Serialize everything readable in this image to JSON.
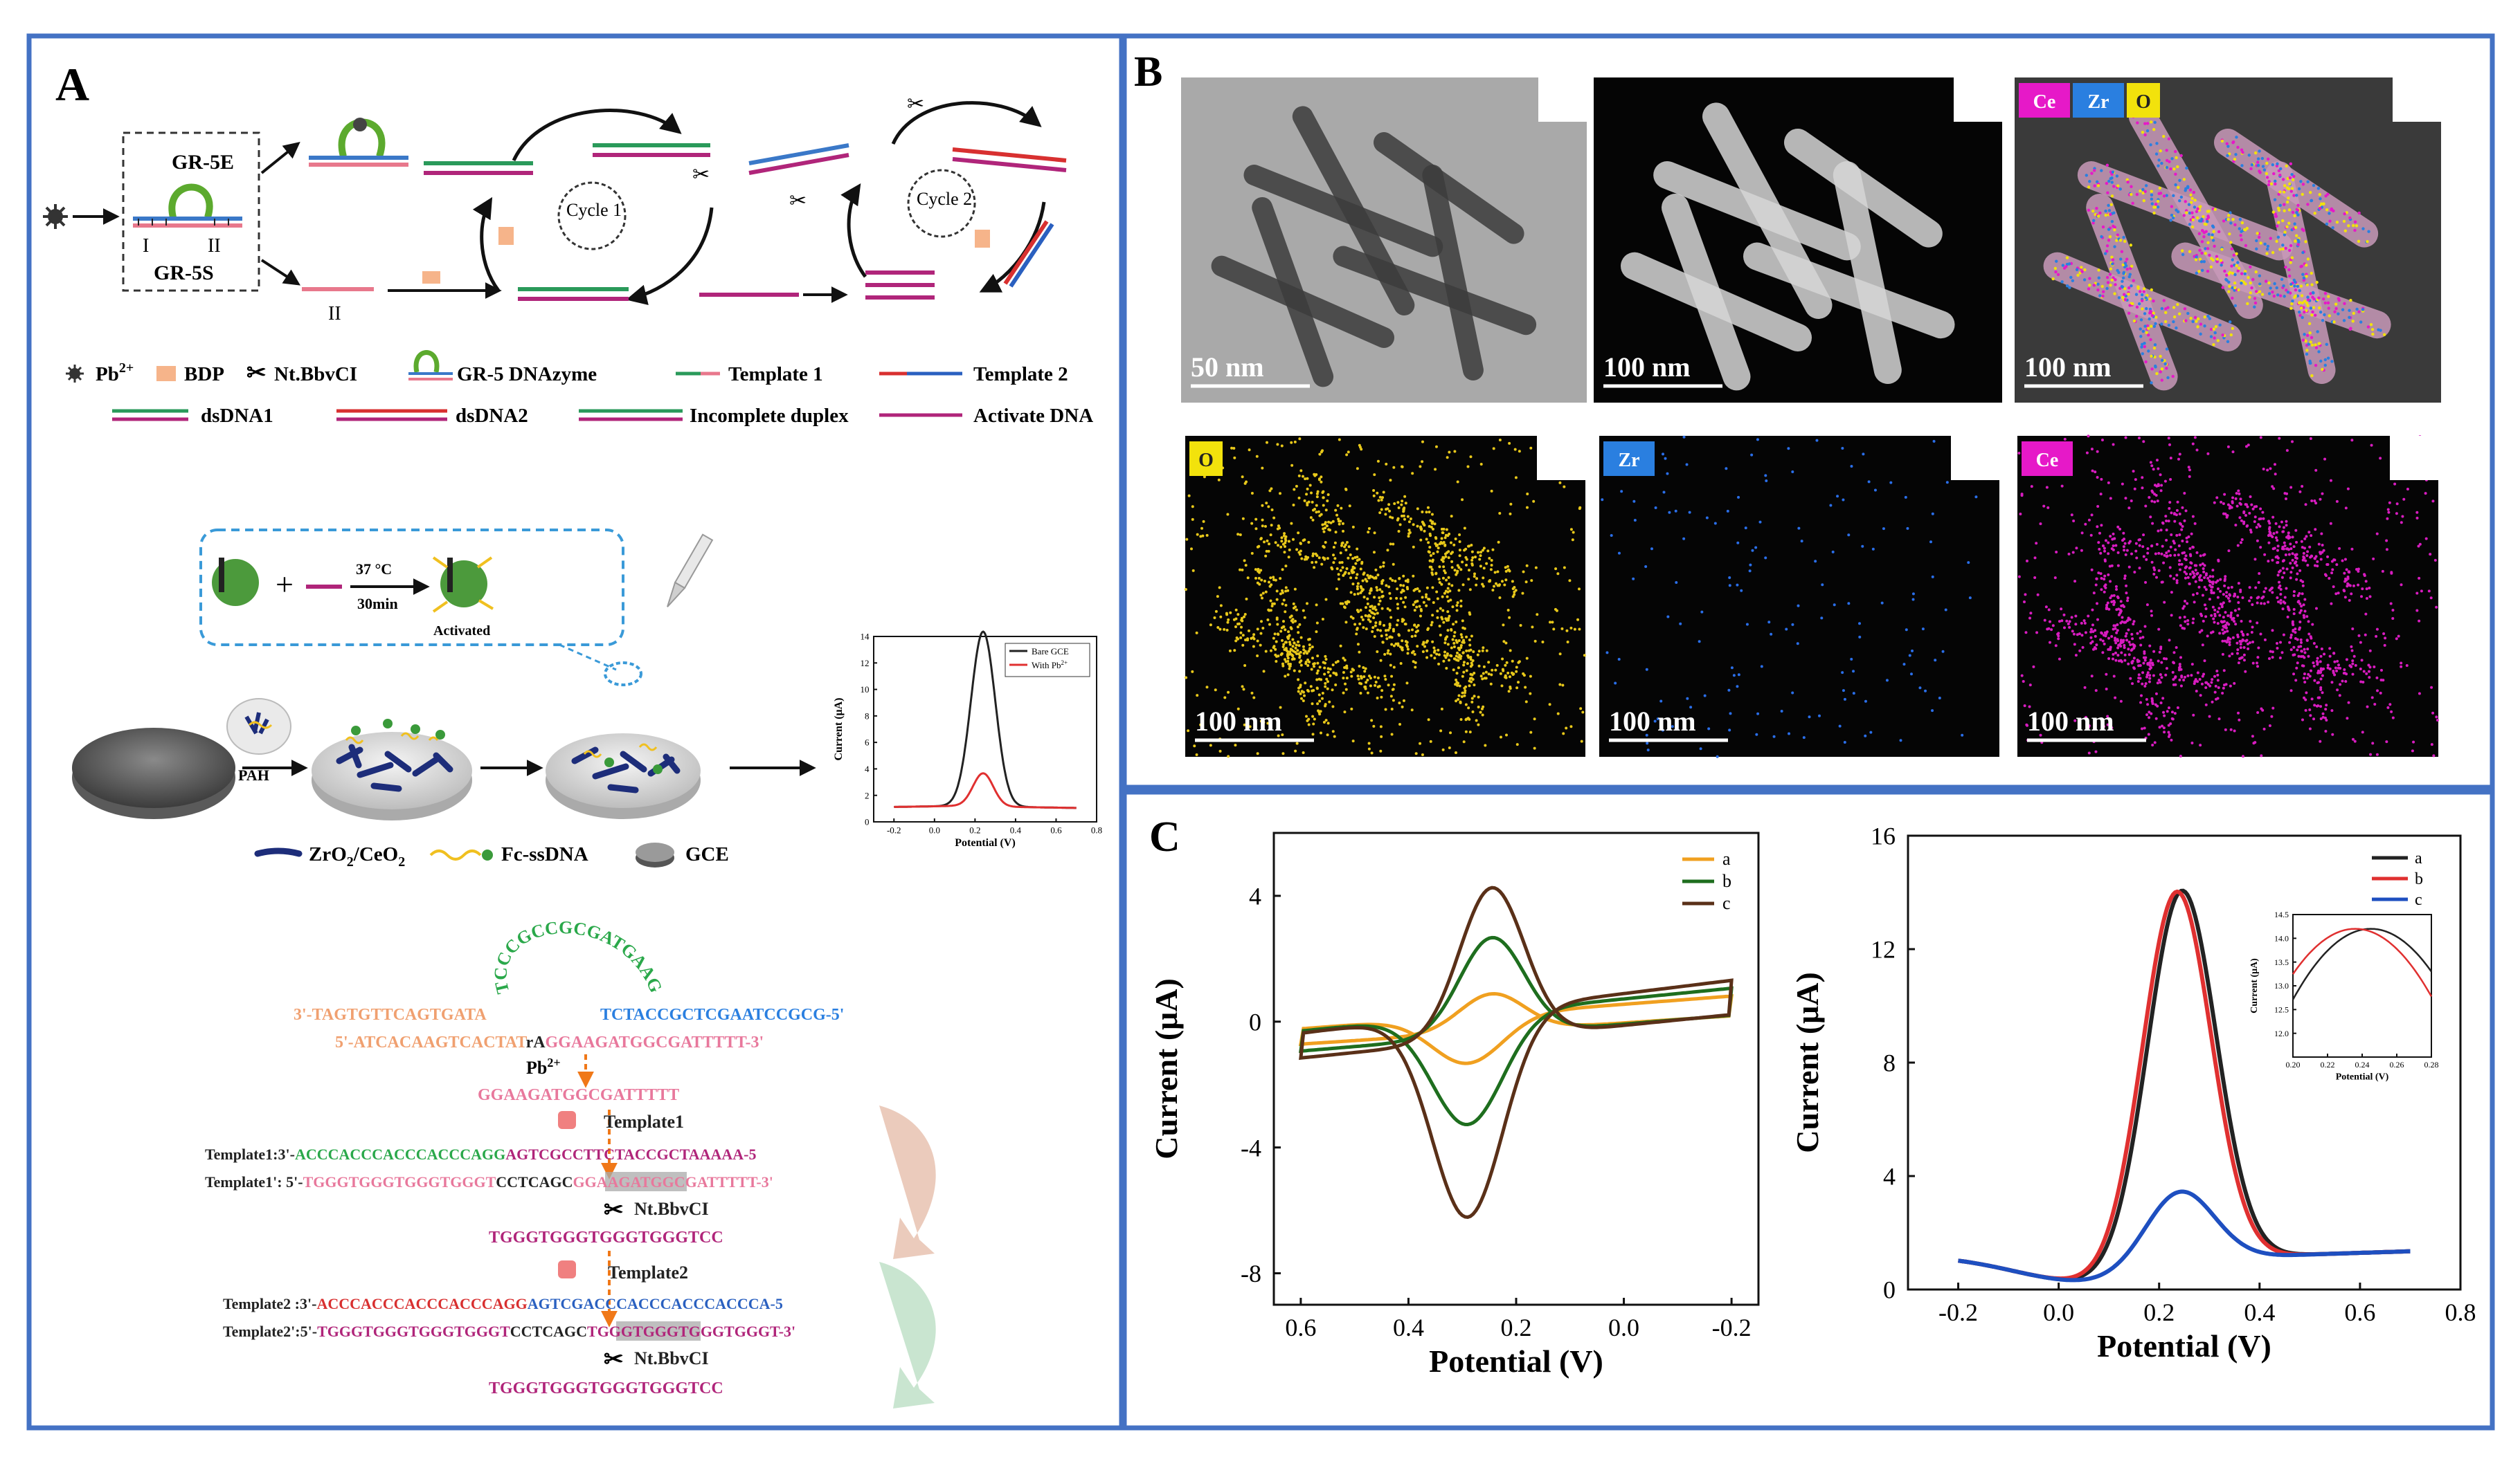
{
  "panelA": {
    "label": "A",
    "scheme": {
      "gr5e": "GR-5E",
      "gr5s": "GR-5S",
      "strand1": "I",
      "strand2": "II",
      "strand2b": "II",
      "cycle1": "Cycle 1",
      "cycle2": "Cycle 2"
    },
    "legend": [
      {
        "text": "Pb",
        "sup": "2+",
        "icon": "lead-ion-icon"
      },
      {
        "text": "BDP",
        "icon": "bdp-block-icon"
      },
      {
        "text": "Nt.BbvCI",
        "icon": "scissors-icon"
      },
      {
        "text": "GR-5 DNAzyme",
        "icon": "dnazyme-icon"
      },
      {
        "text": "Template 1",
        "icon": "template1-line"
      },
      {
        "text": "Template 2",
        "icon": "template2-line"
      },
      {
        "text": "dsDNA1",
        "icon": "dsdna1-icon"
      },
      {
        "text": "dsDNA2",
        "icon": "dsdna2-icon"
      },
      {
        "text": "Incomplete duplex",
        "icon": "incomplete-duplex-icon"
      },
      {
        "text": "Activate DNA",
        "icon": "activate-dna-line"
      }
    ],
    "assembly": {
      "temp": "37 °C",
      "time": "30min",
      "activated": "Activated",
      "pah": "PAH",
      "legend_zro2": "ZrO",
      "legend_zro2_sub": "2",
      "legend_ceo2": "/CeO",
      "legend_ceo2_sub": "2",
      "legend_fc": "Fc-ssDNA",
      "legend_gce": "GCE"
    },
    "sequences": {
      "loop": "TCCCGCCGCGATGAAG",
      "l1_left": "3'-TAGTGTTCAGTGATA",
      "l1_right": "TCTACCGCTCGAATCCGCG-5'",
      "l2_a": "5'-ATCACAAGTCACTAT",
      "l2_b": "rA",
      "l2_c": "GGAAGATGGCGATTTTT-3'",
      "pb": "Pb",
      "pb_sup": "2+",
      "cleaved": "GGAAGATGGCGATTTTT",
      "template1_label": "Template1",
      "t1_prefix": "Template1:3'-",
      "t1_seq_a": "ACCCACCCACCCACCCAGG",
      "t1_seq_b": "AGTCGCCTTCTACCGCTAAAAA-5",
      "t1p_prefix": "Template1':  5'-",
      "t1p_seq_a": "TGGGTGGGTGGGTGGGT",
      "t1p_seq_b": "CCTCAGC",
      "t1p_seq_c": "GGAAGATGGCGATTTTT-3'",
      "nick1": "Nt.BbvCI",
      "product1": "TGGGTGGGTGGGTGGGTCC",
      "template2_label": "Template2",
      "t2_prefix": "Template2 :3'-",
      "t2_seq_a": "ACCCACCCACCCACCCAGG",
      "t2_seq_b": "AGTCGACCCACCCACCCACCCA-5",
      "t2p_prefix": "Template2':5'-",
      "t2p_seq_a": "TGGGTGGGTGGGTGGGT",
      "t2p_seq_b": "CCTCAGC",
      "t2p_seq_c": "TGGGTGGGTGGGTGGGT-3'",
      "nick2": "Nt.BbvCI",
      "product2": "TGGGTGGGTGGGTGGGTCC"
    }
  },
  "panelB": {
    "label": "B",
    "tiles": [
      {
        "scale": "50 nm",
        "tags": []
      },
      {
        "scale": "100 nm",
        "tags": []
      },
      {
        "scale": "100 nm",
        "tags": [
          {
            "t": "Ce",
            "c": "#e619c8"
          },
          {
            "t": "Zr",
            "c": "#2a7fe0"
          },
          {
            "t": "O",
            "c": "#f2e20c"
          }
        ]
      },
      {
        "scale": "100 nm",
        "tags": [
          {
            "t": "O",
            "c": "#f2e20c"
          }
        ]
      },
      {
        "scale": "100 nm",
        "tags": [
          {
            "t": "Zr",
            "c": "#2a7fe0"
          }
        ]
      },
      {
        "scale": "100 nm",
        "tags": [
          {
            "t": "Ce",
            "c": "#e619c8"
          }
        ]
      }
    ]
  },
  "panelC": {
    "label": "C"
  },
  "chart_data": [
    {
      "type": "line",
      "name_hint": "inset schematic DPV",
      "xlabel": "Potential (V)",
      "ylabel": "Current (μA)",
      "xlim": [
        -0.3,
        0.8
      ],
      "ylim": [
        0,
        14
      ],
      "xticks": [
        "-0.2",
        "0.0",
        "0.2",
        "0.4",
        "0.6",
        "0.8"
      ],
      "yticks": [
        "0",
        "2",
        "4",
        "6",
        "8",
        "10",
        "12",
        "14"
      ],
      "legend_position": "top-right",
      "series": [
        {
          "name": "Bare GCE",
          "color": "#222222",
          "peak": 14.2,
          "center": 0.24,
          "width": 0.06,
          "base": 1.0
        },
        {
          "name": "With Pb",
          "name_sup": "2+",
          "color": "#e03030",
          "peak": 3.5,
          "center": 0.24,
          "width": 0.05,
          "base": 1.0
        }
      ]
    },
    {
      "type": "line",
      "name_hint": "cyclic voltammetry",
      "xlabel": "Potential (V)",
      "ylabel": "Current (μA)",
      "xlim": [
        0.65,
        -0.25
      ],
      "ylim": [
        -9,
        6
      ],
      "xticks": [
        "0.6",
        "0.4",
        "0.2",
        "0.0",
        "-0.2"
      ],
      "xtick_values": [
        0.6,
        0.4,
        0.2,
        0.0,
        -0.2
      ],
      "yticks": [
        "4",
        "0",
        "-4",
        "-8"
      ],
      "ytick_values": [
        4,
        0,
        -4,
        -8
      ],
      "legend_position": "top-right",
      "series": [
        {
          "name": "a",
          "color": "#f0a020",
          "peak_a": 1.5,
          "peak_c": -2.1,
          "cap": 0.65
        },
        {
          "name": "b",
          "color": "#1e6e1e",
          "peak_a": 3.4,
          "peak_c": -4.1,
          "cap": 0.85
        },
        {
          "name": "c",
          "color": "#5a3018",
          "peak_a": 5.1,
          "peak_c": -7.1,
          "cap": 1.05
        }
      ]
    },
    {
      "type": "line",
      "name_hint": "differential pulse voltammetry",
      "xlabel": "Potential (V)",
      "ylabel": "Current (μA)",
      "xlim": [
        -0.3,
        0.8
      ],
      "ylim": [
        0,
        16
      ],
      "xticks": [
        "-0.2",
        "0.0",
        "0.2",
        "0.4",
        "0.6",
        "0.8"
      ],
      "xtick_values": [
        -0.2,
        0.0,
        0.2,
        0.4,
        0.6,
        0.8
      ],
      "yticks": [
        "0",
        "4",
        "8",
        "12",
        "16"
      ],
      "ytick_values": [
        0,
        4,
        8,
        12,
        16
      ],
      "legend_position": "top-right",
      "series": [
        {
          "name": "a",
          "color": "#222222",
          "peak": 14.2,
          "center": 0.245
        },
        {
          "name": "b",
          "color": "#e03030",
          "peak": 14.2,
          "center": 0.235
        },
        {
          "name": "c",
          "color": "#1e4fc0",
          "peak": 3.6,
          "center": 0.24
        }
      ],
      "inset": {
        "xlabel": "Potential (V)",
        "ylabel": "Current (μA)",
        "xlim": [
          0.2,
          0.28
        ],
        "ylim": [
          11.5,
          14.5
        ],
        "xticks": [
          "0.20",
          "0.22",
          "0.24",
          "0.26",
          "0.28"
        ],
        "xtick_values": [
          0.2,
          0.22,
          0.24,
          0.26,
          0.28
        ],
        "yticks": [
          "12.0",
          "12.5",
          "13.0",
          "13.5",
          "14.0",
          "14.5"
        ],
        "ytick_values": [
          12.0,
          12.5,
          13.0,
          13.5,
          14.0,
          14.5
        ]
      }
    }
  ]
}
